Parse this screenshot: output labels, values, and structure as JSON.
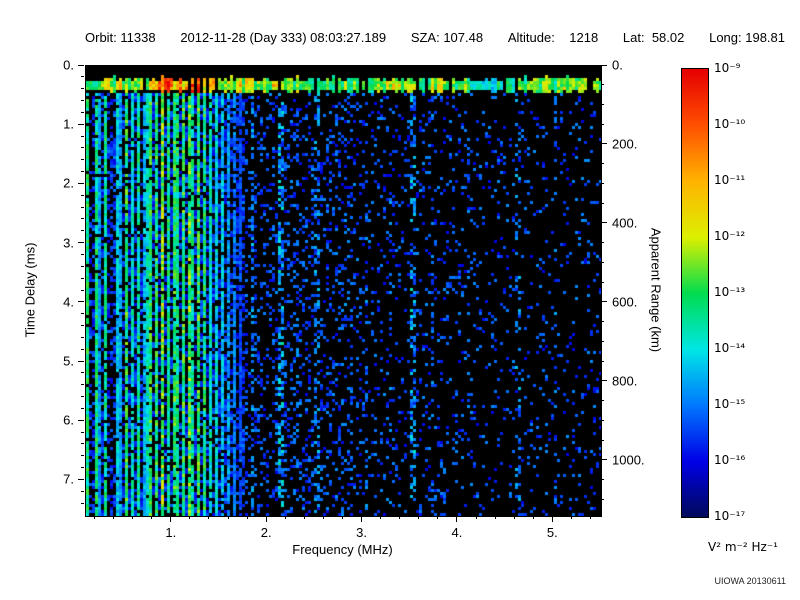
{
  "header": {
    "items": [
      {
        "text": "Orbit: 11338"
      },
      {
        "text": "2012-11-28 (Day 333) 08:03:27.189"
      },
      {
        "text": "SZA: 107.48"
      },
      {
        "text": "Altitude:    1218"
      },
      {
        "text": "Lat:  58.02"
      },
      {
        "text": "Long: 198.81"
      }
    ]
  },
  "footer": {
    "credit": "UIOWA 20130611"
  },
  "chart_data": {
    "type": "heatmap",
    "title": "",
    "xlabel": "Frequency (MHz)",
    "ylabel_left": "Time Delay (ms)",
    "ylabel_right": "Apparent Range (km)",
    "x_range_mhz": [
      0.1,
      5.5
    ],
    "y_range_ms": [
      0.0,
      7.6
    ],
    "right_axis_range_km": [
      0,
      1140
    ],
    "x_ticks": [
      "1.",
      "2.",
      "3.",
      "4.",
      "5."
    ],
    "x_tick_values": [
      1,
      2,
      3,
      4,
      5
    ],
    "y_ticks_left": [
      "0.",
      "1.",
      "2.",
      "3.",
      "4.",
      "5.",
      "6.",
      "7."
    ],
    "y_tick_values_left": [
      0,
      1,
      2,
      3,
      4,
      5,
      6,
      7
    ],
    "y_ticks_right": [
      "0.",
      "200.",
      "400.",
      "600.",
      "800.",
      "1000."
    ],
    "y_tick_values_right_km": [
      0,
      200,
      400,
      600,
      800,
      1000
    ],
    "minor_ticks": {
      "x_step_mhz": 0.2,
      "y_left_step_ms": 0.2,
      "y_right_step_km": 50
    },
    "km_per_ms": 150,
    "colorbar": {
      "scale": "log",
      "unit": "V² m⁻² Hz⁻¹",
      "ticks": [
        "10⁻⁹",
        "10⁻¹⁰",
        "10⁻¹¹",
        "10⁻¹²",
        "10⁻¹³",
        "10⁻¹⁴",
        "10⁻¹⁵",
        "10⁻¹⁶",
        "10⁻¹⁷"
      ],
      "max_exp": -9,
      "min_exp": -17,
      "colormap_stops": [
        {
          "v": 0.0,
          "hex": "#000a5a"
        },
        {
          "v": 0.125,
          "hex": "#0000e6"
        },
        {
          "v": 0.25,
          "hex": "#0078ff"
        },
        {
          "v": 0.375,
          "hex": "#00e6e6"
        },
        {
          "v": 0.5,
          "hex": "#00dc50"
        },
        {
          "v": 0.625,
          "hex": "#dcf000"
        },
        {
          "v": 0.75,
          "hex": "#ffb400"
        },
        {
          "v": 0.875,
          "hex": "#ff5000"
        },
        {
          "v": 1.0,
          "hex": "#e60000"
        }
      ]
    },
    "features": {
      "stripe_cutoff_mhz": 1.75,
      "interstripe_fill_prob": 0.5,
      "stripe_gap_prob": 0.1,
      "plasma_harmonic_stripes": [
        {
          "f": 0.125,
          "w": 0.018,
          "v": 0.58
        },
        {
          "f": 0.165,
          "w": 0.012,
          "v": 0.35
        },
        {
          "f": 0.21,
          "w": 0.016,
          "v": 0.5
        },
        {
          "f": 0.255,
          "w": 0.014,
          "v": 0.42
        },
        {
          "f": 0.3,
          "w": 0.014,
          "v": 0.52
        },
        {
          "f": 0.35,
          "w": 0.012,
          "v": 0.38
        },
        {
          "f": 0.415,
          "w": 0.016,
          "v": 0.5
        },
        {
          "f": 0.47,
          "w": 0.012,
          "v": 0.4
        },
        {
          "f": 0.525,
          "w": 0.018,
          "v": 0.55
        },
        {
          "f": 0.585,
          "w": 0.014,
          "v": 0.45
        },
        {
          "f": 0.645,
          "w": 0.016,
          "v": 0.52
        },
        {
          "f": 0.7,
          "w": 0.014,
          "v": 0.45
        },
        {
          "f": 0.765,
          "w": 0.022,
          "v": 0.6
        },
        {
          "f": 0.835,
          "w": 0.02,
          "v": 0.55
        },
        {
          "f": 0.9,
          "w": 0.022,
          "v": 0.62
        },
        {
          "f": 0.97,
          "w": 0.018,
          "v": 0.55
        },
        {
          "f": 1.04,
          "w": 0.026,
          "v": 0.62
        },
        {
          "f": 1.115,
          "w": 0.02,
          "v": 0.58
        },
        {
          "f": 1.19,
          "w": 0.026,
          "v": 0.63
        },
        {
          "f": 1.27,
          "w": 0.024,
          "v": 0.6
        },
        {
          "f": 1.345,
          "w": 0.018,
          "v": 0.55
        },
        {
          "f": 1.41,
          "w": 0.016,
          "v": 0.5
        },
        {
          "f": 1.47,
          "w": 0.014,
          "v": 0.44
        },
        {
          "f": 1.53,
          "w": 0.012,
          "v": 0.38
        },
        {
          "f": 1.59,
          "w": 0.012,
          "v": 0.33
        },
        {
          "f": 1.65,
          "w": 0.012,
          "v": 0.3
        },
        {
          "f": 1.71,
          "w": 0.01,
          "v": 0.27
        }
      ],
      "surface_echo_band": {
        "delay_ms": 0.32,
        "half_width_ms": 0.1,
        "gap_prob": 0.07,
        "profile": [
          {
            "f0": 0.1,
            "f1": 0.3,
            "v": 0.5
          },
          {
            "f0": 0.3,
            "f1": 0.8,
            "v": 0.6
          },
          {
            "f0": 0.8,
            "f1": 1.0,
            "v": 0.88
          },
          {
            "f0": 1.0,
            "f1": 1.45,
            "v": 0.72
          },
          {
            "f0": 1.45,
            "f1": 2.2,
            "v": 0.58
          },
          {
            "f0": 2.2,
            "f1": 3.2,
            "v": 0.52
          },
          {
            "f0": 3.2,
            "f1": 4.1,
            "v": 0.55
          },
          {
            "f0": 4.1,
            "f1": 4.6,
            "v": 0.4
          },
          {
            "f0": 4.6,
            "f1": 5.5,
            "v": 0.52
          }
        ]
      },
      "faint_vertical_lines": [
        {
          "f": 1.85,
          "w": 0.02,
          "density": 0.5,
          "boost": 0.1
        },
        {
          "f": 2.15,
          "w": 0.025,
          "density": 0.6,
          "boost": 0.18
        },
        {
          "f": 2.32,
          "w": 0.015,
          "density": 0.3,
          "boost": 0.05
        },
        {
          "f": 2.52,
          "w": 0.02,
          "density": 0.4,
          "boost": 0.1
        },
        {
          "f": 2.82,
          "w": 0.015,
          "density": 0.25,
          "boost": 0.05
        },
        {
          "f": 3.05,
          "w": 0.015,
          "density": 0.25,
          "boost": 0.05
        },
        {
          "f": 3.28,
          "w": 0.015,
          "density": 0.2,
          "boost": 0.05
        },
        {
          "f": 3.52,
          "w": 0.02,
          "density": 0.45,
          "boost": 0.15
        },
        {
          "f": 3.72,
          "w": 0.015,
          "density": 0.2,
          "boost": 0.05
        },
        {
          "f": 4.1,
          "w": 0.015,
          "density": 0.2,
          "boost": 0.03
        },
        {
          "f": 4.62,
          "w": 0.02,
          "density": 0.3,
          "boost": 0.08
        },
        {
          "f": 5.0,
          "w": 0.015,
          "density": 0.15,
          "boost": 0.03
        }
      ],
      "background_speckle": [
        {
          "f0": 1.75,
          "f1": 2.9,
          "density": 0.2
        },
        {
          "f0": 2.9,
          "f1": 4.2,
          "density": 0.12
        },
        {
          "f0": 4.2,
          "f1": 5.5,
          "density": 0.08
        }
      ]
    }
  }
}
